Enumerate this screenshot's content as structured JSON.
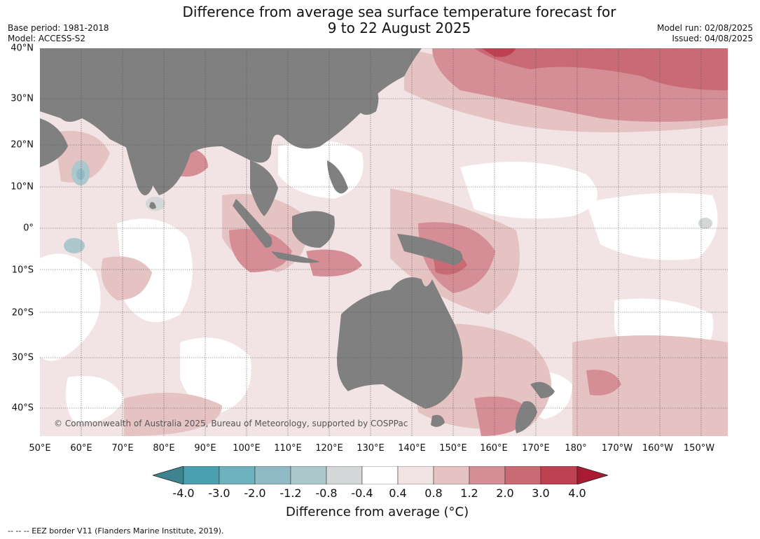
{
  "title_line1": "Difference from average sea surface temperature forecast for",
  "title_line2": "9 to 22 August 2025",
  "meta": {
    "base_period": "Base period: 1981-2018",
    "model": "Model: ACCESS-S2",
    "model_run": "Model run: 02/08/2025",
    "issued": "Issued: 04/08/2025"
  },
  "lat_labels": [
    "40°N",
    "30°N",
    "20°N",
    "10°N",
    "0°",
    "10°S",
    "20°S",
    "30°S",
    "40°S"
  ],
  "lon_labels": [
    "50°E",
    "60°E",
    "70°E",
    "80°E",
    "90°E",
    "100°E",
    "110°E",
    "120°E",
    "130°E",
    "140°E",
    "150°E",
    "160°E",
    "170°E",
    "180°",
    "170°W",
    "160°W",
    "150°W"
  ],
  "copyright": "© Commonwealth of Australia 2025, Bureau of Meteorology, supported by COSPPac",
  "colorbar": {
    "ticks": [
      "-4.0",
      "-3.0",
      "-2.0",
      "-1.2",
      "-0.8",
      "-0.4",
      "0.4",
      "0.8",
      "1.2",
      "2.0",
      "3.0",
      "4.0"
    ],
    "colors": [
      "#3e848e",
      "#4aa0b0",
      "#6fb2bf",
      "#90bac6",
      "#acc8cd",
      "#d3d7d8",
      "#ffffff",
      "#f2e4e4",
      "#e6c3c3",
      "#d68e96",
      "#c96a74",
      "#bd4150",
      "#a81b33"
    ],
    "label": "Difference from average (°C)"
  },
  "land_color": "#808080",
  "footer": "-- -- -- EEZ border V11 (Flanders Marine Institute, 2019)."
}
